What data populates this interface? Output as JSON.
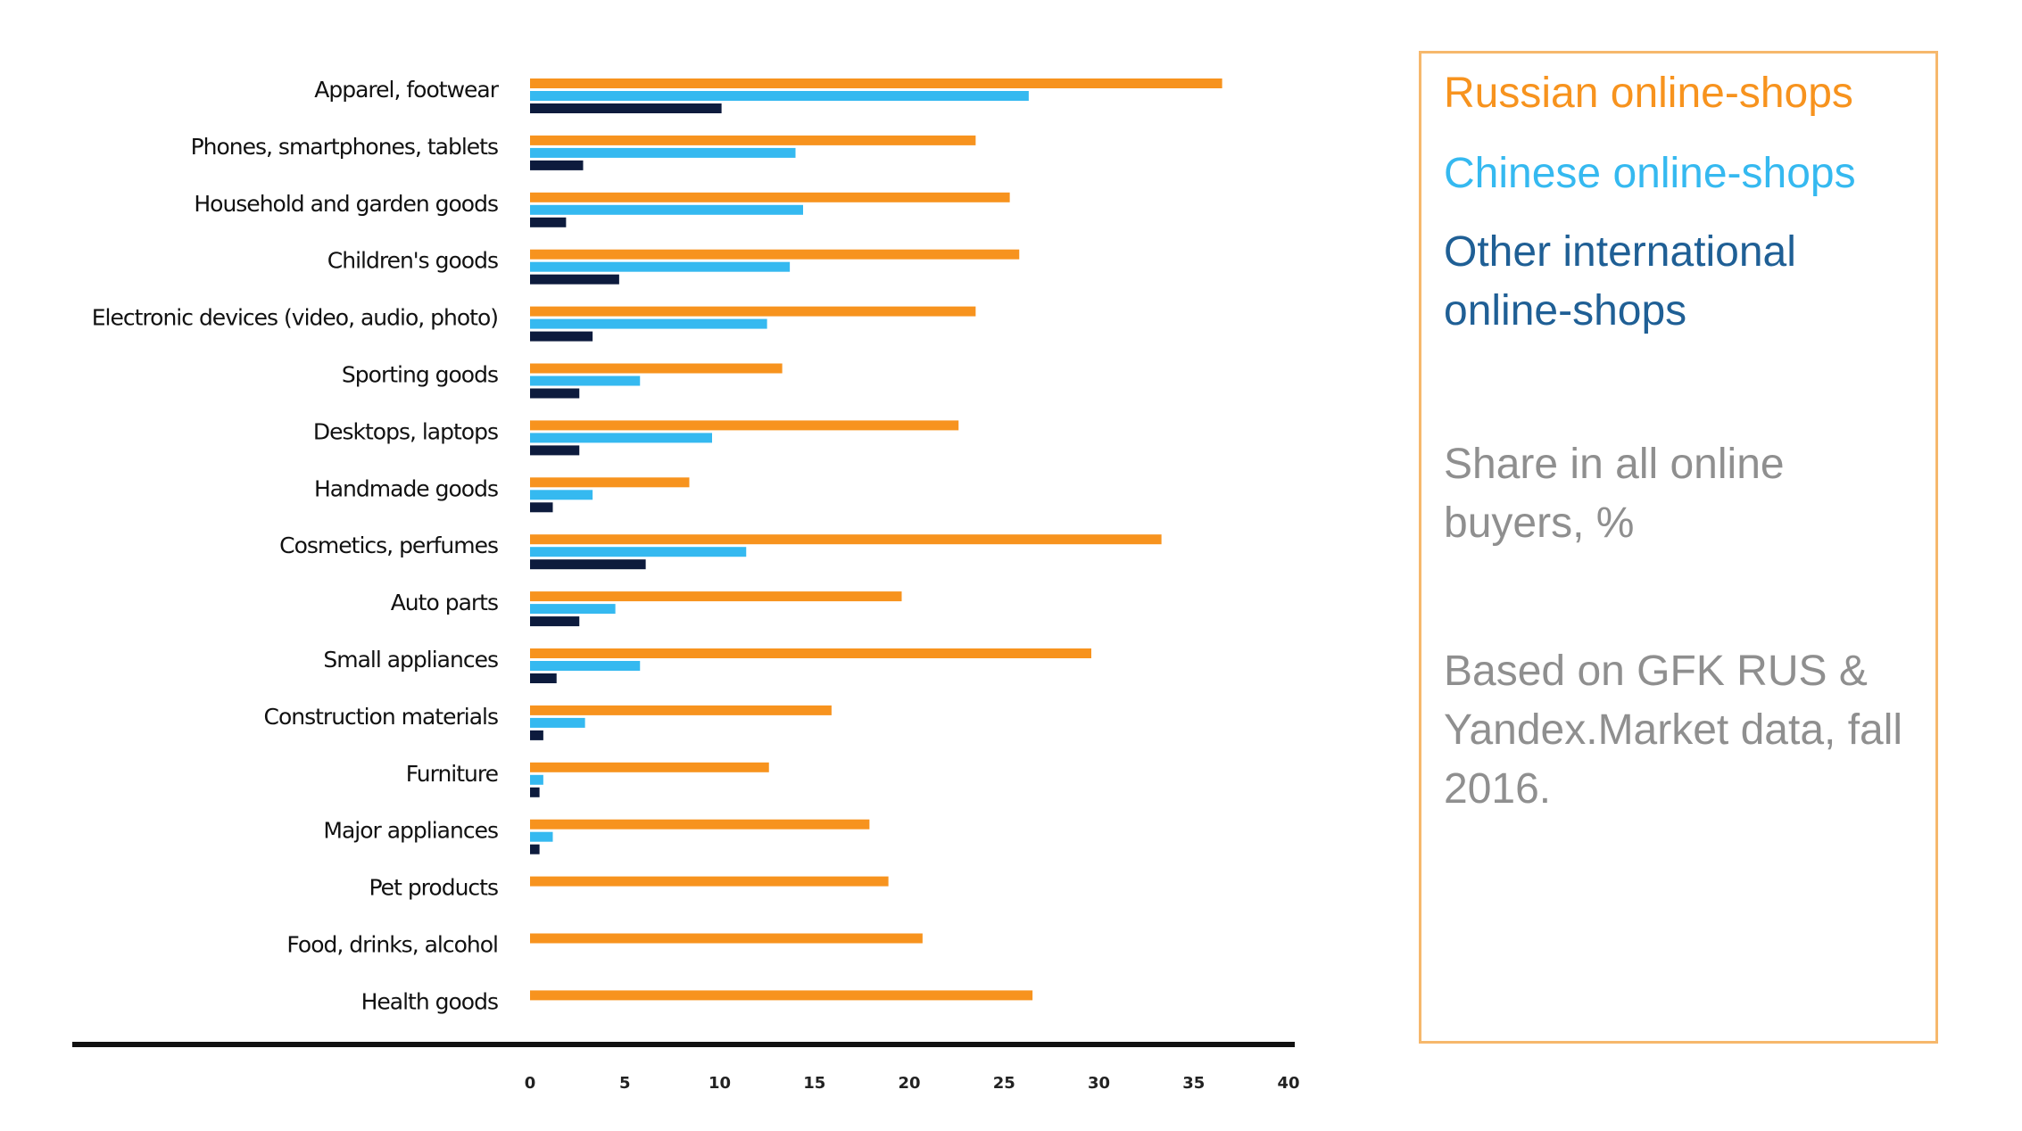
{
  "chart_data": {
    "type": "bar",
    "orientation": "horizontal",
    "categories": [
      "Apparel, footwear",
      "Phones, smartphones, tablets",
      "Household and garden goods",
      "Children's goods",
      "Electronic devices (video, audio, photo)",
      "Sporting goods",
      "Desktops, laptops",
      "Handmade goods",
      "Cosmetics, perfumes",
      "Auto parts",
      "Small appliances",
      "Construction materials",
      "Furniture",
      "Major appliances",
      "Pet products",
      "Food, drinks, alcohol",
      "Health goods"
    ],
    "series": [
      {
        "name": "Russian online-shops",
        "color": "#f7931e",
        "values": [
          36.5,
          23.5,
          25.3,
          25.8,
          23.5,
          13.3,
          22.6,
          8.4,
          33.3,
          19.6,
          29.6,
          15.9,
          12.6,
          17.9,
          18.9,
          20.7,
          26.5
        ]
      },
      {
        "name": "Chinese online-shops",
        "color": "#35b9f0",
        "values": [
          26.3,
          14.0,
          14.4,
          13.7,
          12.5,
          5.8,
          9.6,
          3.3,
          11.4,
          4.5,
          5.8,
          2.9,
          0.7,
          1.2,
          0,
          0,
          0
        ]
      },
      {
        "name": "Other international online-shops",
        "color": "#0d1b3d",
        "values": [
          10.1,
          2.8,
          1.9,
          4.7,
          3.3,
          2.6,
          2.6,
          1.2,
          6.1,
          2.6,
          1.4,
          0.7,
          0.5,
          0.5,
          0,
          0,
          0
        ]
      }
    ],
    "x_ticks": [
      "0",
      "5",
      "10",
      "15",
      "20",
      "25",
      "30",
      "35",
      "40"
    ],
    "xlim": [
      0,
      40
    ],
    "title": "",
    "xlabel": "",
    "ylabel": "",
    "grid": false,
    "legend_position": "right"
  },
  "legend": {
    "russian": "Russian online-shops",
    "chinese": "Chinese online-shops",
    "other": "Other international online-shops",
    "share_note": "Share in all online buyers, %",
    "source_note": "Based on GFK RUS & Yandex.Market data, fall 2016."
  }
}
